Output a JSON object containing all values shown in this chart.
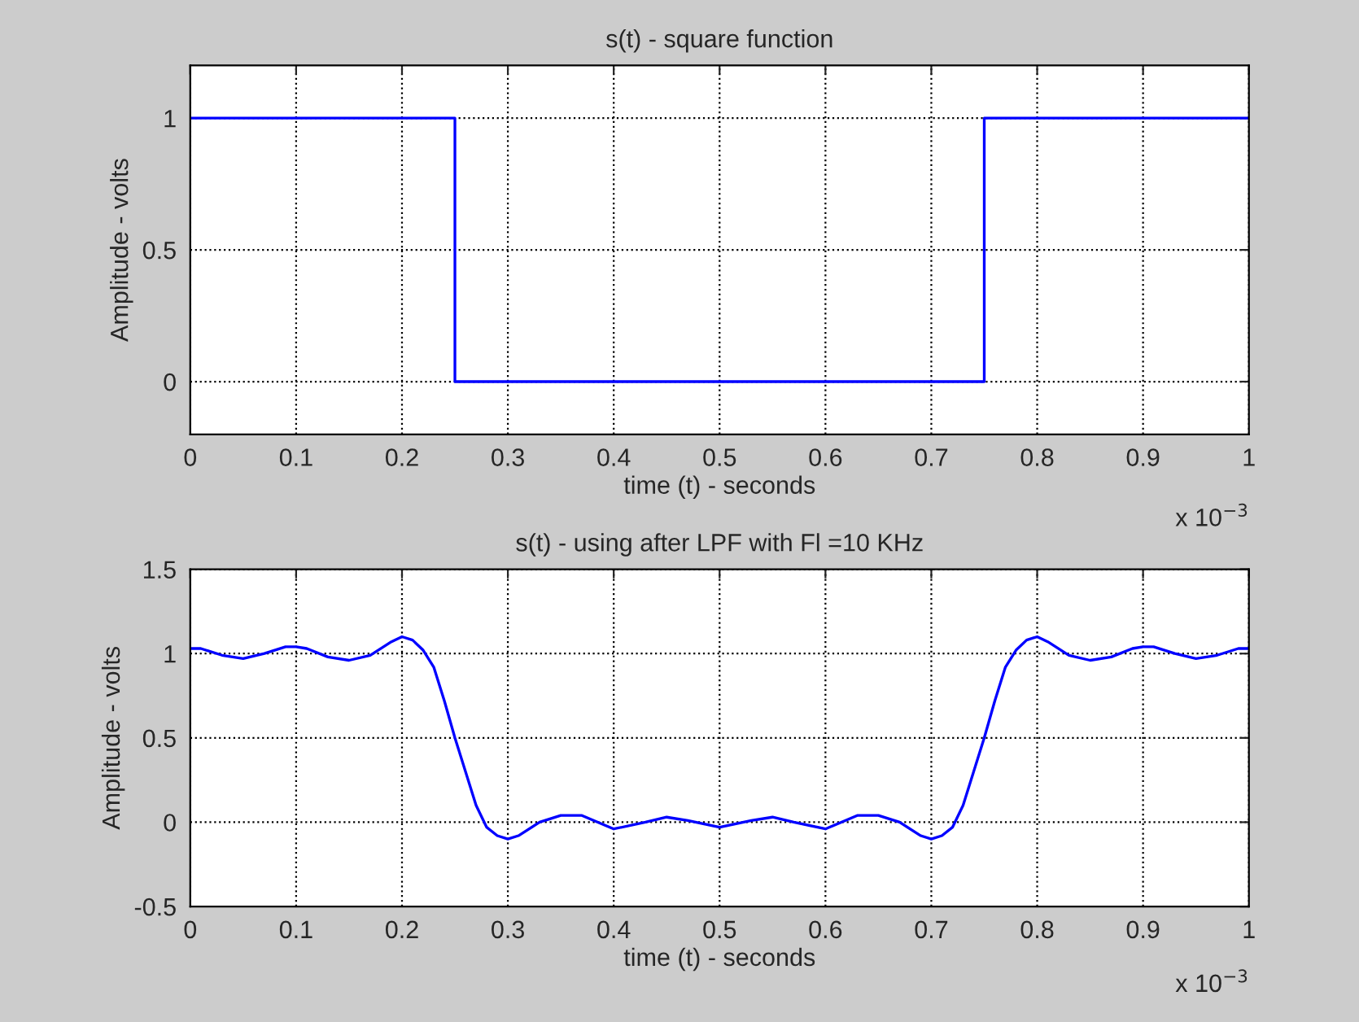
{
  "chart_data": [
    {
      "type": "step",
      "title": "s(t) - square function",
      "xlabel": "time (t) - seconds",
      "ylabel": "Amplitude - volts",
      "series": [
        {
          "color": "#0000ff",
          "x": [
            0,
            0.25,
            0.75,
            1
          ],
          "values": [
            1,
            0,
            1,
            1
          ]
        }
      ],
      "xlim": [
        0,
        1
      ],
      "xticks": [
        0,
        0.1,
        0.2,
        0.3,
        0.4,
        0.5,
        0.6,
        0.7,
        0.8,
        0.9,
        1
      ],
      "ylim": [
        -0.2,
        1.2
      ],
      "yticks": [
        0,
        0.5,
        1
      ],
      "grid": true,
      "annotations": [
        "x 10$^{−3}$"
      ]
    },
    {
      "type": "line",
      "title": "s(t) - using after LPF with Fl =10 KHz",
      "xlabel": "time (t) - seconds",
      "ylabel": "Amplitude - volts",
      "series": [
        {
          "color": "#0000ff",
          "x": [
            0,
            0.01,
            0.03,
            0.05,
            0.07,
            0.09,
            0.1,
            0.11,
            0.13,
            0.15,
            0.17,
            0.19,
            0.2,
            0.21,
            0.22,
            0.23,
            0.24,
            0.25,
            0.26,
            0.27,
            0.28,
            0.29,
            0.3,
            0.31,
            0.33,
            0.35,
            0.37,
            0.4,
            0.43,
            0.45,
            0.47,
            0.5,
            0.53,
            0.55,
            0.57,
            0.6,
            0.63,
            0.65,
            0.67,
            0.69,
            0.7,
            0.71,
            0.72,
            0.73,
            0.74,
            0.75,
            0.76,
            0.77,
            0.78,
            0.79,
            0.8,
            0.81,
            0.83,
            0.85,
            0.87,
            0.89,
            0.9,
            0.91,
            0.93,
            0.95,
            0.97,
            0.99,
            1
          ],
          "values": [
            1.03,
            1.03,
            0.99,
            0.97,
            1.0,
            1.04,
            1.04,
            1.03,
            0.98,
            0.96,
            0.99,
            1.07,
            1.1,
            1.08,
            1.02,
            0.92,
            0.72,
            0.5,
            0.3,
            0.1,
            -0.03,
            -0.08,
            -0.1,
            -0.08,
            0.0,
            0.04,
            0.04,
            -0.04,
            0.0,
            0.03,
            0.01,
            -0.03,
            0.01,
            0.03,
            0.0,
            -0.04,
            0.04,
            0.04,
            0.0,
            -0.08,
            -0.1,
            -0.08,
            -0.03,
            0.1,
            0.3,
            0.5,
            0.72,
            0.92,
            1.02,
            1.08,
            1.1,
            1.07,
            0.99,
            0.96,
            0.98,
            1.03,
            1.04,
            1.04,
            1.0,
            0.97,
            0.99,
            1.03,
            1.03
          ]
        }
      ],
      "xlim": [
        0,
        1
      ],
      "xticks": [
        0,
        0.1,
        0.2,
        0.3,
        0.4,
        0.5,
        0.6,
        0.7,
        0.8,
        0.9,
        1
      ],
      "ylim": [
        -0.5,
        1.5
      ],
      "yticks": [
        -0.5,
        0,
        0.5,
        1,
        1.5
      ],
      "grid": true,
      "annotations": [
        "x 10$^{−3}$"
      ]
    }
  ]
}
